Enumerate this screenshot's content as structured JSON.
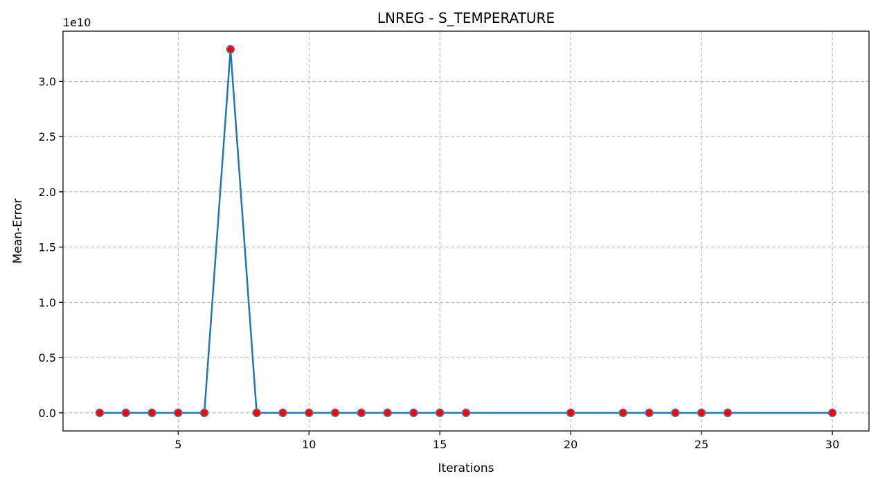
{
  "chart_data": {
    "type": "line",
    "title": "LNREG - S_TEMPERATURE",
    "xlabel": "Iterations",
    "ylabel": "Mean-Error",
    "y_offset_label": "1e10",
    "y_scale_factor": 10000000000,
    "x": [
      2,
      3,
      4,
      5,
      6,
      7,
      8,
      9,
      10,
      11,
      12,
      13,
      14,
      15,
      16,
      20,
      22,
      23,
      24,
      25,
      26,
      30
    ],
    "series": [
      {
        "values": [
          0,
          0,
          0,
          0,
          0,
          32900000000,
          0,
          0,
          0,
          0,
          0,
          0,
          0,
          0,
          0,
          0,
          0,
          0,
          0,
          0,
          0,
          0
        ],
        "line_color": "#1f77b4",
        "marker_face_color": "#ff0000",
        "marker_edge_color": "#5a7ea6"
      }
    ],
    "xlim": [
      0.6,
      31.4
    ],
    "ylim": [
      -1640000000,
      34540000000
    ],
    "xticks": [
      5,
      10,
      15,
      20,
      25,
      30
    ],
    "xtick_labels": [
      "5",
      "10",
      "15",
      "20",
      "25",
      "30"
    ],
    "yticks": [
      0,
      5000000000,
      10000000000,
      15000000000,
      20000000000,
      25000000000,
      30000000000
    ],
    "ytick_labels": [
      "0.0",
      "0.5",
      "1.0",
      "1.5",
      "2.0",
      "2.5",
      "3.0"
    ],
    "grid": true,
    "legend": "none"
  }
}
